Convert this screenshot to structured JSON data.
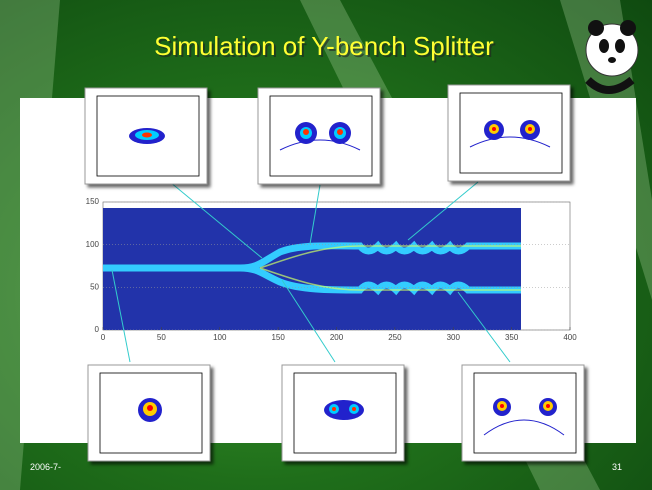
{
  "title": "Simulation of Y-bench Splitter",
  "plot": {
    "xlim": [
      0,
      400
    ],
    "ylim": [
      0,
      150
    ],
    "xticks": [
      0,
      50,
      100,
      150,
      200,
      250,
      300,
      350,
      400
    ],
    "yticks": [
      0,
      50,
      100,
      150
    ]
  },
  "footer": {
    "date": "2006-7-",
    "page": "31"
  }
}
